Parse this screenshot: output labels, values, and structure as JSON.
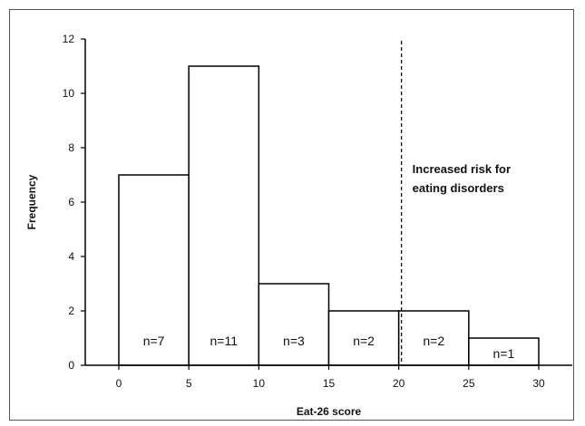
{
  "chart_data": {
    "type": "bar",
    "subtype": "histogram",
    "title": "",
    "xlabel": "Eat-26 score",
    "ylabel": "Frequency",
    "xlim": [
      0,
      30
    ],
    "ylim": [
      0,
      12
    ],
    "x_ticks": [
      0,
      5,
      10,
      15,
      20,
      25,
      30
    ],
    "y_ticks": [
      0,
      2,
      4,
      6,
      8,
      10,
      12
    ],
    "bins": [
      {
        "start": 0,
        "end": 5,
        "value": 7,
        "label": "n=7"
      },
      {
        "start": 5,
        "end": 10,
        "value": 11,
        "label": "n=11"
      },
      {
        "start": 10,
        "end": 15,
        "value": 3,
        "label": "n=3"
      },
      {
        "start": 15,
        "end": 20,
        "value": 2,
        "label": "n=2"
      },
      {
        "start": 20,
        "end": 25,
        "value": 2,
        "label": "n=2"
      },
      {
        "start": 25,
        "end": 30,
        "value": 1,
        "label": "n=1"
      }
    ],
    "threshold": {
      "x": 20,
      "style": "dashed",
      "label_lines": [
        "Increased risk for",
        "eating disorders"
      ]
    },
    "grid": false,
    "legend": "none",
    "colors": {
      "bar_fill": "#ffffff",
      "bar_stroke": "#000000",
      "axis": "#000000"
    }
  }
}
